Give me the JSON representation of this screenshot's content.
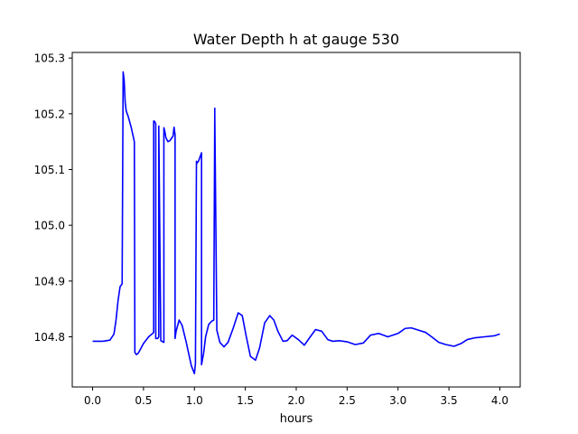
{
  "chart_data": {
    "type": "line",
    "title": "Water Depth h at gauge 530",
    "xlabel": "hours",
    "ylabel": "",
    "xlim": [
      -0.2,
      4.2
    ],
    "ylim": [
      104.71,
      105.31
    ],
    "xticks": [
      0.0,
      0.5,
      1.0,
      1.5,
      2.0,
      2.5,
      3.0,
      3.5,
      4.0
    ],
    "xtick_labels": [
      "0.0",
      "0.5",
      "1.0",
      "1.5",
      "2.0",
      "2.5",
      "3.0",
      "3.5",
      "4.0"
    ],
    "yticks": [
      104.8,
      104.9,
      105.0,
      105.1,
      105.2,
      105.3
    ],
    "ytick_labels": [
      "104.8",
      "104.9",
      "105.0",
      "105.1",
      "105.2",
      "105.3"
    ],
    "grid": false,
    "legend": "none",
    "series": [
      {
        "color": "#0000ff",
        "x": [
          0.0,
          0.1,
          0.17,
          0.21,
          0.23,
          0.25,
          0.27,
          0.29,
          0.3,
          0.3,
          0.31,
          0.32,
          0.33,
          0.35,
          0.38,
          0.41,
          0.415,
          0.415,
          0.43,
          0.45,
          0.5,
          0.55,
          0.59,
          0.6,
          0.6,
          0.61,
          0.62,
          0.62,
          0.64,
          0.65,
          0.65,
          0.67,
          0.7,
          0.7,
          0.71,
          0.72,
          0.74,
          0.76,
          0.79,
          0.8,
          0.81,
          0.81,
          0.82,
          0.85,
          0.88,
          0.92,
          0.97,
          1.0,
          1.01,
          1.02,
          1.02,
          1.04,
          1.06,
          1.07,
          1.07,
          1.09,
          1.11,
          1.14,
          1.17,
          1.19,
          1.2,
          1.2,
          1.22,
          1.22,
          1.25,
          1.29,
          1.33,
          1.38,
          1.43,
          1.47,
          1.51,
          1.55,
          1.6,
          1.64,
          1.69,
          1.74,
          1.78,
          1.82,
          1.87,
          1.91,
          1.96,
          2.02,
          2.08,
          2.13,
          2.19,
          2.25,
          2.31,
          2.36,
          2.42,
          2.5,
          2.58,
          2.66,
          2.73,
          2.81,
          2.9,
          3.0,
          3.07,
          3.13,
          3.2,
          3.27,
          3.33,
          3.4,
          3.47,
          3.55,
          3.62,
          3.68,
          3.75,
          3.85,
          3.95,
          4.0
        ],
        "y": [
          104.792,
          104.792,
          104.794,
          104.805,
          104.83,
          104.865,
          104.89,
          104.895,
          105.275,
          105.275,
          105.26,
          105.22,
          105.205,
          105.195,
          105.175,
          105.15,
          104.772,
          104.772,
          104.768,
          104.771,
          104.788,
          104.8,
          104.806,
          104.808,
          105.187,
          105.186,
          105.182,
          104.797,
          104.797,
          104.8,
          105.178,
          104.793,
          104.79,
          105.175,
          105.168,
          105.157,
          105.15,
          105.152,
          105.16,
          105.176,
          105.162,
          104.797,
          104.81,
          104.83,
          104.82,
          104.79,
          104.748,
          104.734,
          104.752,
          105.115,
          105.11,
          105.115,
          105.125,
          105.13,
          104.75,
          104.77,
          104.8,
          104.822,
          104.828,
          104.83,
          105.21,
          105.2,
          104.818,
          104.812,
          104.79,
          104.782,
          104.79,
          104.815,
          104.843,
          104.838,
          104.8,
          104.765,
          104.758,
          104.78,
          104.825,
          104.838,
          104.83,
          104.81,
          104.792,
          104.793,
          104.803,
          104.795,
          104.785,
          104.798,
          104.813,
          104.81,
          104.795,
          104.792,
          104.793,
          104.791,
          104.786,
          104.789,
          104.803,
          104.806,
          104.8,
          104.806,
          104.815,
          104.816,
          104.812,
          104.808,
          104.8,
          104.79,
          104.786,
          104.783,
          104.788,
          104.795,
          104.798,
          104.8,
          104.802,
          104.805
        ]
      }
    ]
  }
}
